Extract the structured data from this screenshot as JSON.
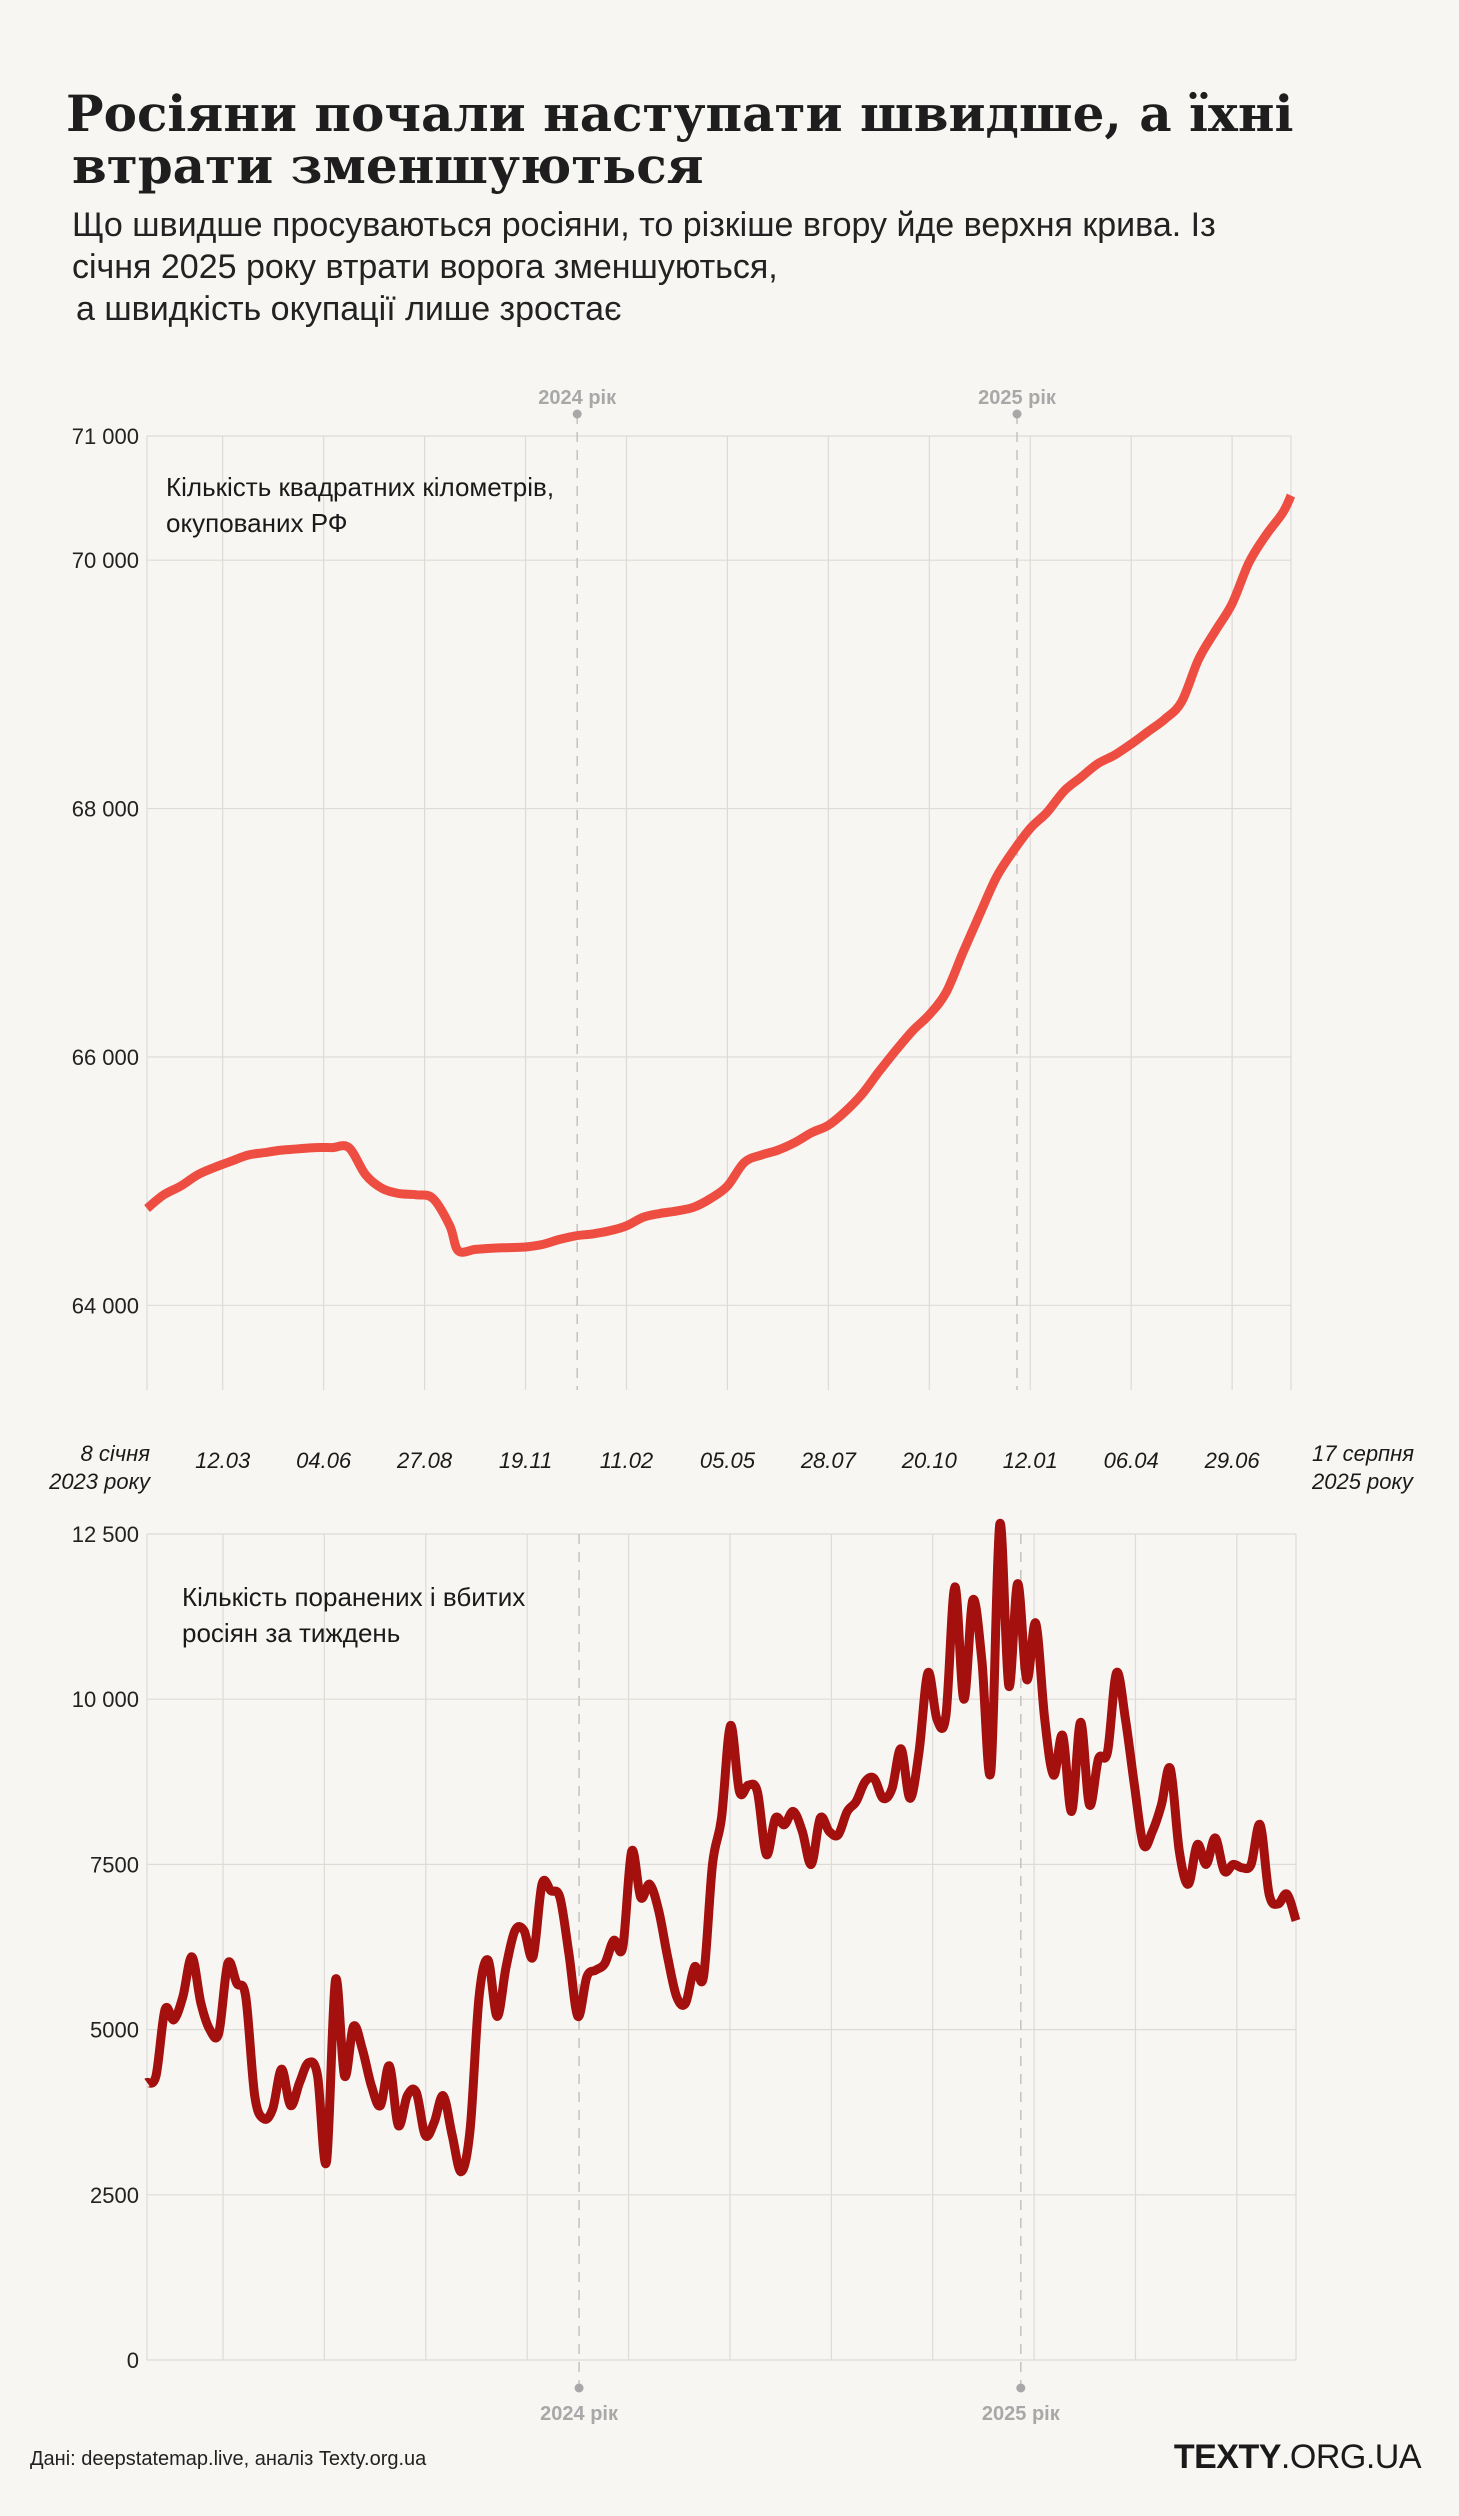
{
  "title_line1": "Росіяни почали наступати швидше, а їхні",
  "title_line2": "втрати зменшуються",
  "subtitle_line1": "Що швидше просуваються росіяни, то різкіше вгору йде верхня крива. Із",
  "subtitle_line2": "січня 2025 року втрати ворога зменшуються,",
  "subtitle_line3": "а швидкість окупації лише зростає",
  "source": "Дані: deepstatemap.live, аналіз Texty.org.ua",
  "brand_bold": "TEXTY",
  "brand_rest": ".ORG.UA",
  "colors": {
    "occupied": "#ee4e42",
    "losses": "#a3100e",
    "grid": "#dddbd6",
    "marker": "#a8a8a8"
  },
  "chart_data": [
    {
      "type": "line",
      "label": "Кількість квадратних кілометрів,\nокупованих РФ",
      "x_range": [
        "2023-01-08",
        "2025-08-17"
      ],
      "ylim": [
        63600,
        71000
      ],
      "yticks": [
        {
          "value": 64000,
          "label": "64 000"
        },
        {
          "value": 66000,
          "label": "66 000"
        },
        {
          "value": 68000,
          "label": "68 000"
        },
        {
          "value": 70000,
          "label": "70 000"
        },
        {
          "value": 71000,
          "label": "71 000"
        }
      ],
      "series": [
        {
          "points": [
            [
              "2023-01-08",
              64780
            ],
            [
              "2023-01-22",
              64890
            ],
            [
              "2023-02-05",
              64960
            ],
            [
              "2023-02-19",
              65050
            ],
            [
              "2023-03-05",
              65110
            ],
            [
              "2023-03-19",
              65160
            ],
            [
              "2023-04-02",
              65210
            ],
            [
              "2023-04-16",
              65230
            ],
            [
              "2023-04-30",
              65250
            ],
            [
              "2023-05-14",
              65260
            ],
            [
              "2023-05-28",
              65270
            ],
            [
              "2023-06-11",
              65270
            ],
            [
              "2023-06-25",
              65270
            ],
            [
              "2023-07-09",
              65050
            ],
            [
              "2023-07-23",
              64940
            ],
            [
              "2023-08-06",
              64900
            ],
            [
              "2023-08-20",
              64890
            ],
            [
              "2023-09-03",
              64860
            ],
            [
              "2023-09-17",
              64640
            ],
            [
              "2023-09-24",
              64440
            ],
            [
              "2023-10-08",
              64450
            ],
            [
              "2023-10-22",
              64460
            ],
            [
              "2023-11-05",
              64465
            ],
            [
              "2023-11-19",
              64470
            ],
            [
              "2023-12-03",
              64490
            ],
            [
              "2023-12-17",
              64530
            ],
            [
              "2023-12-31",
              64560
            ],
            [
              "2024-01-14",
              64575
            ],
            [
              "2024-01-28",
              64600
            ],
            [
              "2024-02-11",
              64640
            ],
            [
              "2024-02-25",
              64710
            ],
            [
              "2024-03-10",
              64740
            ],
            [
              "2024-03-24",
              64760
            ],
            [
              "2024-04-07",
              64790
            ],
            [
              "2024-04-21",
              64860
            ],
            [
              "2024-05-05",
              64960
            ],
            [
              "2024-05-19",
              65150
            ],
            [
              "2024-06-02",
              65210
            ],
            [
              "2024-06-16",
              65250
            ],
            [
              "2024-06-30",
              65310
            ],
            [
              "2024-07-14",
              65390
            ],
            [
              "2024-07-28",
              65450
            ],
            [
              "2024-08-11",
              65560
            ],
            [
              "2024-08-25",
              65700
            ],
            [
              "2024-09-08",
              65880
            ],
            [
              "2024-09-22",
              66050
            ],
            [
              "2024-10-06",
              66210
            ],
            [
              "2024-10-20",
              66340
            ],
            [
              "2024-11-03",
              66520
            ],
            [
              "2024-11-17",
              66840
            ],
            [
              "2024-12-01",
              67150
            ],
            [
              "2024-12-15",
              67450
            ],
            [
              "2024-12-29",
              67660
            ],
            [
              "2025-01-12",
              67840
            ],
            [
              "2025-01-26",
              67970
            ],
            [
              "2025-02-09",
              68140
            ],
            [
              "2025-02-23",
              68250
            ],
            [
              "2025-03-09",
              68360
            ],
            [
              "2025-03-23",
              68430
            ],
            [
              "2025-04-06",
              68520
            ],
            [
              "2025-04-20",
              68620
            ],
            [
              "2025-05-04",
              68720
            ],
            [
              "2025-05-18",
              68860
            ],
            [
              "2025-06-01",
              69200
            ],
            [
              "2025-06-15",
              69430
            ],
            [
              "2025-06-29",
              69650
            ],
            [
              "2025-07-13",
              69980
            ],
            [
              "2025-07-27",
              70200
            ],
            [
              "2025-08-10",
              70380
            ],
            [
              "2025-08-17",
              70520
            ]
          ]
        }
      ]
    },
    {
      "type": "line",
      "label": "Кількість поранених і вбитих\nросіян за тиждень",
      "x_range": [
        "2023-01-08",
        "2025-08-17"
      ],
      "ylim": [
        0,
        12500
      ],
      "yticks": [
        {
          "value": 0,
          "label": "0"
        },
        {
          "value": 2500,
          "label": "2500"
        },
        {
          "value": 5000,
          "label": "5000"
        },
        {
          "value": 7500,
          "label": "7500"
        },
        {
          "value": 10000,
          "label": "10 000"
        },
        {
          "value": 12500,
          "label": "12 500"
        }
      ],
      "series": [
        {
          "values": [
            4200,
            4300,
            5300,
            5150,
            5500,
            6100,
            5400,
            5000,
            4950,
            6000,
            5700,
            5500,
            4000,
            3650,
            3800,
            4400,
            3850,
            4200,
            4500,
            4300,
            3000,
            5750,
            4300,
            5050,
            4700,
            4150,
            3850,
            4450,
            3550,
            4000,
            4050,
            3400,
            3600,
            4000,
            3400,
            2850,
            3500,
            5500,
            6050,
            5200,
            5950,
            6500,
            6500,
            6100,
            7200,
            7100,
            7000,
            6150,
            5200,
            5800,
            5900,
            6000,
            6350,
            6250,
            7700,
            7000,
            7200,
            6800,
            6100,
            5500,
            5400,
            5950,
            5800,
            7500,
            8200,
            9600,
            8600,
            8700,
            8600,
            7650,
            8200,
            8100,
            8300,
            8000,
            7500,
            8200,
            8000,
            7950,
            8300,
            8450,
            8750,
            8800,
            8500,
            8650,
            9250,
            8500,
            9200,
            10400,
            9700,
            9750,
            11700,
            10000,
            11500,
            10600,
            8900,
            12650,
            10200,
            11750,
            10300,
            11150,
            9700,
            8850,
            9450,
            8300,
            9650,
            8400,
            9100,
            9200,
            10400,
            9700,
            8700,
            7800,
            8000,
            8400,
            8950,
            7700,
            7200,
            7800,
            7500,
            7900,
            7400,
            7500,
            7450,
            7500,
            8100,
            7050,
            6900,
            7050,
            6650
          ]
        }
      ]
    }
  ],
  "x_ticks": [
    {
      "date": "2023-01-08",
      "label_line1": "8 січня",
      "label_line2": "2023 року"
    },
    {
      "date": "2023-03-12",
      "label_line1": "12.03",
      "label_line2": ""
    },
    {
      "date": "2023-06-04",
      "label_line1": "04.06",
      "label_line2": ""
    },
    {
      "date": "2023-08-27",
      "label_line1": "27.08",
      "label_line2": ""
    },
    {
      "date": "2023-11-19",
      "label_line1": "19.11",
      "label_line2": ""
    },
    {
      "date": "2024-02-11",
      "label_line1": "11.02",
      "label_line2": ""
    },
    {
      "date": "2024-05-05",
      "label_line1": "05.05",
      "label_line2": ""
    },
    {
      "date": "2024-07-28",
      "label_line1": "28.07",
      "label_line2": ""
    },
    {
      "date": "2024-10-20",
      "label_line1": "20.10",
      "label_line2": ""
    },
    {
      "date": "2025-01-12",
      "label_line1": "12.01",
      "label_line2": ""
    },
    {
      "date": "2025-04-06",
      "label_line1": "06.04",
      "label_line2": ""
    },
    {
      "date": "2025-06-29",
      "label_line1": "29.06",
      "label_line2": ""
    },
    {
      "date": "2025-08-17",
      "label_line1": "17 серпня",
      "label_line2": "2025 року"
    }
  ],
  "year_markers": [
    {
      "date": "2024-01-01",
      "label": "2024 рік"
    },
    {
      "date": "2025-01-01",
      "label": "2025 рік"
    }
  ]
}
